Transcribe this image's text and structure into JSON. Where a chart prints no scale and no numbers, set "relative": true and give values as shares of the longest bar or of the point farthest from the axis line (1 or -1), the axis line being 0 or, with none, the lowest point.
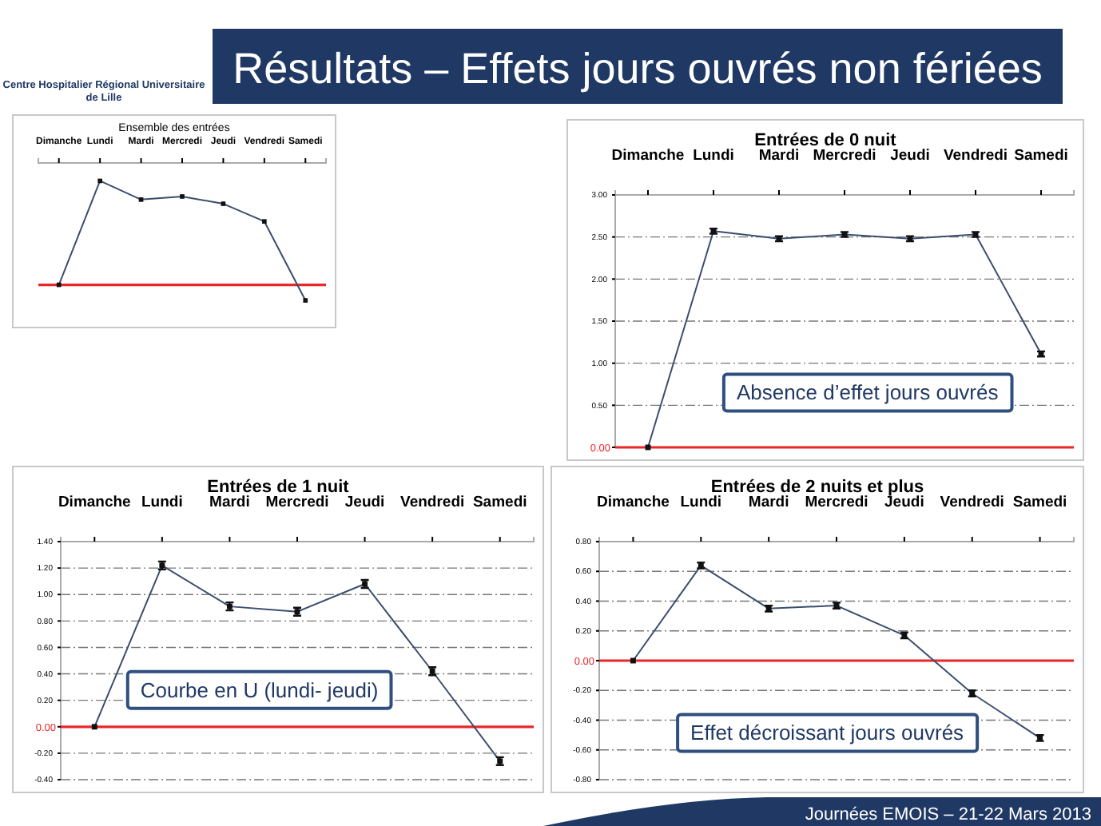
{
  "chart_data": [
    {
      "type": "other",
      "title": "Résultats – Effets jours ouvrés non fériées",
      "annotations": [
        "Centre Hospitalier Régional Universitaire de Lille",
        "Journées EMOIS – 21-22 Mars 2013"
      ]
    },
    {
      "type": "line",
      "title": "Ensemble des entrées",
      "relative": true,
      "categories": [
        "Dimanche",
        "Lundi",
        "Mardi",
        "Mercredi",
        "Jeudi",
        "Vendredi",
        "Samedi"
      ],
      "series": [
        {
          "color": "#3b4e6e",
          "values": [
            0,
            1,
            0.82,
            0.85,
            0.78,
            0.61,
            -0.15
          ]
        }
      ],
      "marker": "square",
      "ref_lines": [
        {
          "axis": "y",
          "value": 0,
          "color": "#e8262b"
        }
      ]
    },
    {
      "type": "line",
      "title": "Entrées de 0 nuit",
      "categories": [
        "Dimanche",
        "Lundi",
        "Mardi",
        "Mercredi",
        "Jeudi",
        "Vendredi",
        "Samedi"
      ],
      "series": [
        {
          "color": "#3b4e6e",
          "values": [
            0,
            2.57,
            2.48,
            2.53,
            2.48,
            2.53,
            1.11
          ],
          "errors": [
            null,
            0.03,
            0.03,
            0.03,
            0.03,
            0.03,
            0.03
          ]
        }
      ],
      "ylim": [
        0,
        3
      ],
      "yticks": [
        {
          "value": 0,
          "label": null
        },
        {
          "value": 0.5,
          "label": "0.50"
        },
        {
          "value": 1,
          "label": "1.00"
        },
        {
          "value": 1.5,
          "label": "1.50"
        },
        {
          "value": 2,
          "label": "2.00"
        },
        {
          "value": 2.5,
          "label": "2.50"
        },
        {
          "value": 3,
          "label": "3.00"
        }
      ],
      "grid": "y",
      "marker": "square",
      "ref_lines": [
        {
          "axis": "y",
          "value": 0,
          "label": "0.00",
          "color": "#e8262b"
        }
      ],
      "annotations": [
        "Absence d’effet jours ouvrés"
      ]
    },
    {
      "type": "line",
      "title": "Entrées de 1 nuit",
      "categories": [
        "Dimanche",
        "Lundi",
        "Mardi",
        "Mercredi",
        "Jeudi",
        "Vendredi",
        "Samedi"
      ],
      "series": [
        {
          "color": "#3b4e6e",
          "values": [
            0,
            1.22,
            0.91,
            0.87,
            1.08,
            0.42,
            -0.26
          ],
          "errors": [
            null,
            0.03,
            0.03,
            0.03,
            0.03,
            0.03,
            0.03
          ]
        }
      ],
      "ylim": [
        -0.4,
        1.4
      ],
      "yticks": [
        {
          "value": -0.4,
          "label": "-0.40"
        },
        {
          "value": -0.2,
          "label": "-0.20"
        },
        {
          "value": 0,
          "label": null
        },
        {
          "value": 0.2,
          "label": "0.20"
        },
        {
          "value": 0.4,
          "label": "0.40"
        },
        {
          "value": 0.6,
          "label": "0.60"
        },
        {
          "value": 0.8,
          "label": "0.80"
        },
        {
          "value": 1,
          "label": "1.00"
        },
        {
          "value": 1.2,
          "label": "1.20"
        },
        {
          "value": 1.4,
          "label": "1.40"
        }
      ],
      "grid": "y",
      "marker": "square",
      "ref_lines": [
        {
          "axis": "y",
          "value": 0,
          "label": "0.00",
          "color": "#e8262b"
        }
      ],
      "annotations": [
        "Courbe en U (lundi- jeudi)"
      ]
    },
    {
      "type": "line",
      "title": "Entrées de 2 nuits et plus",
      "categories": [
        "Dimanche",
        "Lundi",
        "Mardi",
        "Mercredi",
        "Jeudi",
        "Vendredi",
        "Samedi"
      ],
      "series": [
        {
          "color": "#3b4e6e",
          "values": [
            0,
            0.64,
            0.35,
            0.37,
            0.17,
            -0.22,
            -0.52
          ],
          "errors": [
            null,
            0.02,
            0.02,
            0.02,
            0.02,
            0.02,
            0.02
          ]
        }
      ],
      "ylim": [
        -0.8,
        0.8
      ],
      "yticks": [
        {
          "value": -0.8,
          "label": "-0.80"
        },
        {
          "value": -0.6,
          "label": "-0.60"
        },
        {
          "value": -0.4,
          "label": "-0.40"
        },
        {
          "value": -0.2,
          "label": "-0.20"
        },
        {
          "value": 0,
          "label": null
        },
        {
          "value": 0.2,
          "label": "0.20"
        },
        {
          "value": 0.4,
          "label": "0.40"
        },
        {
          "value": 0.6,
          "label": "0.60"
        },
        {
          "value": 0.8,
          "label": "0.80"
        }
      ],
      "grid": "y",
      "marker": "square",
      "ref_lines": [
        {
          "axis": "y",
          "value": 0,
          "label": "0.00",
          "color": "#e8262b"
        }
      ],
      "annotations": [
        "Effet décroissant jours ouvrés"
      ]
    }
  ]
}
